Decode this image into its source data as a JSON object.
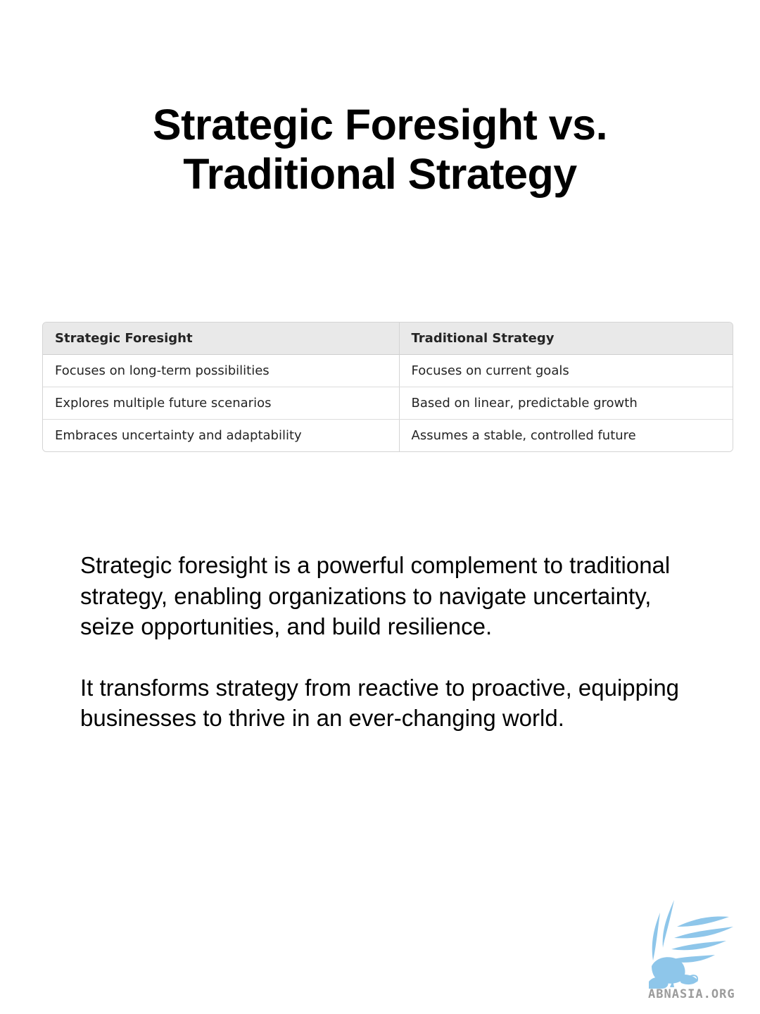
{
  "title": {
    "line1": "Strategic Foresight vs.",
    "line2": "Traditional Strategy"
  },
  "table": {
    "headers": [
      "Strategic Foresight",
      "Traditional Strategy"
    ],
    "rows": [
      [
        "Focuses on long-term possibilities",
        "Focuses on current goals"
      ],
      [
        "Explores multiple future scenarios",
        "Based on linear, predictable growth"
      ],
      [
        "Embraces uncertainty and adaptability",
        "Assumes a stable, controlled future"
      ]
    ]
  },
  "body": {
    "paragraph1": "Strategic foresight is a powerful complement to traditional strategy, enabling organizations to navigate uncertainty, seize opportunities, and build resilience.",
    "paragraph2": "It transforms strategy from reactive to proactive, equipping businesses to thrive in an ever-changing world."
  },
  "logo": {
    "text": "ABNASIA.ORG",
    "icon": "phoenix-logo-icon",
    "color": "#8ec6ea"
  }
}
